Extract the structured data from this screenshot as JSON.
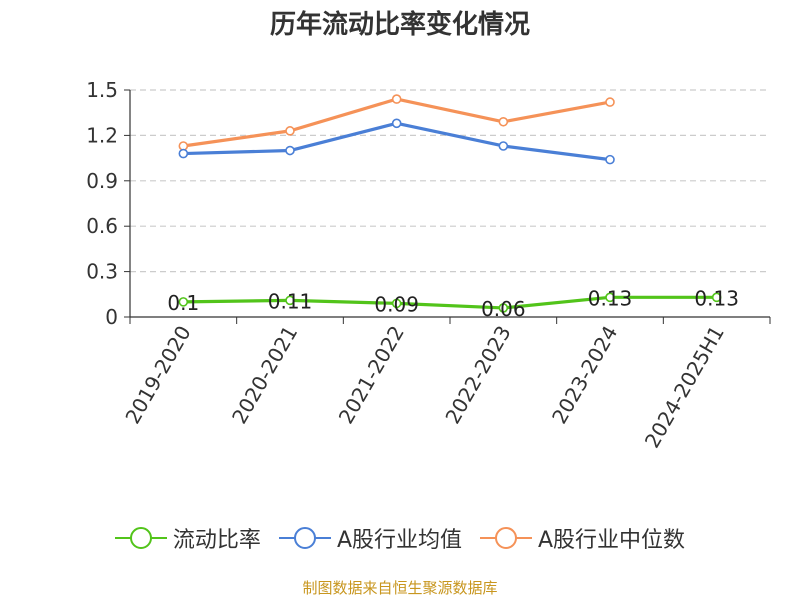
{
  "title": "历年流动比率变化情况",
  "source": "制图数据来自恒生聚源数据库",
  "chart_data": {
    "type": "line",
    "categories": [
      "2019-2020",
      "2020-2021",
      "2021-2022",
      "2022-2023",
      "2023-2024",
      "2024-2025H1"
    ],
    "ylim": [
      0,
      1.5
    ],
    "yticks": [
      "0",
      "0.3",
      "0.6",
      "0.9",
      "1.2",
      "1.5"
    ],
    "grid": true,
    "legend_position": "bottom",
    "series": [
      {
        "name": "流动比率",
        "color": "#52c41a",
        "values": [
          0.1,
          0.11,
          0.09,
          0.06,
          0.13,
          0.13
        ],
        "labels": [
          "0.1",
          "0.11",
          "0.09",
          "0.06",
          "0.13",
          "0.13"
        ]
      },
      {
        "name": "A股行业均值",
        "color": "#4a7fd6",
        "values": [
          1.08,
          1.1,
          1.28,
          1.13,
          1.04,
          null
        ]
      },
      {
        "name": "A股行业中位数",
        "color": "#f59258",
        "values": [
          1.13,
          1.23,
          1.44,
          1.29,
          1.42,
          null
        ]
      }
    ]
  }
}
